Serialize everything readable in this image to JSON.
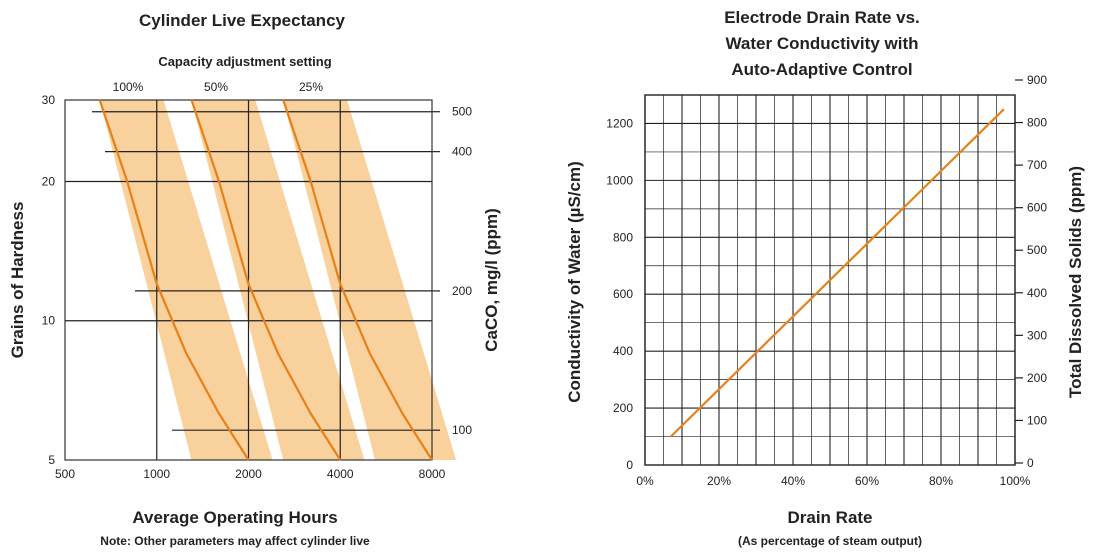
{
  "chart_data": [
    {
      "type": "line",
      "title": "Cylinder Live Expectancy",
      "top_axis_title": "Capacity adjustment setting",
      "top_axis_labels": [
        "100%",
        "50%",
        "25%"
      ],
      "xlabel": "Average Operating Hours",
      "ylabel": "Grains of Hardness",
      "ylabel_right": "CaCO, mg/l (ppm)",
      "note": "Note: Other parameters may affect cylinder live",
      "x_scale": "log",
      "y_scale": "log",
      "xlim": [
        500,
        8000
      ],
      "ylim": [
        5,
        30
      ],
      "x_ticks": [
        "500",
        "1000",
        "2000",
        "4000",
        "8000"
      ],
      "y_ticks": [
        "5",
        "10",
        "20",
        "30"
      ],
      "y_right_ticks": [
        "100",
        "200",
        "400",
        "500"
      ],
      "grid": true,
      "band_color": "#f7c98b",
      "line_color": "#e8801a",
      "series": [
        {
          "name": "100%",
          "x": [
            650,
            800,
            1000,
            1250,
            1600,
            2000
          ],
          "y": [
            30,
            20,
            12,
            8.5,
            6.3,
            5
          ]
        },
        {
          "name": "50%",
          "x": [
            1300,
            1600,
            2000,
            2500,
            3200,
            4000
          ],
          "y": [
            30,
            20,
            12,
            8.5,
            6.3,
            5
          ]
        },
        {
          "name": "25%",
          "x": [
            2600,
            3200,
            4000,
            5000,
            6400,
            8000
          ],
          "y": [
            30,
            20,
            12,
            8.5,
            6.3,
            5
          ]
        }
      ]
    },
    {
      "type": "line",
      "title": "Electrode Drain Rate vs. Water Conductivity with Auto-Adaptive Control",
      "title_lines": [
        "Electrode Drain Rate vs.",
        "Water Conductivity with",
        "Auto-Adaptive Control"
      ],
      "xlabel": "Drain Rate",
      "xlabel_note": "(As percentage of steam output)",
      "ylabel": "Conductivity of Water (µS/cm)",
      "ylabel_right": "Total Dissolved Solids (ppm)",
      "xlim": [
        0,
        100
      ],
      "ylim": [
        0,
        1300
      ],
      "x_ticks": [
        "0%",
        "20%",
        "40%",
        "60%",
        "80%",
        "100%"
      ],
      "y_ticks": [
        "0",
        "200",
        "400",
        "600",
        "800",
        "1000",
        "1200"
      ],
      "y_right_ticks": [
        "0",
        "100",
        "200",
        "300",
        "400",
        "500",
        "600",
        "700",
        "800",
        "900"
      ],
      "grid": true,
      "line_color": "#e8801a",
      "series": [
        {
          "x": [
            7,
            97
          ],
          "y": [
            100,
            1250
          ]
        }
      ]
    }
  ]
}
